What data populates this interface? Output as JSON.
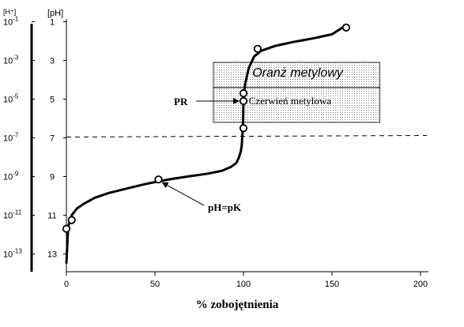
{
  "chart_data": {
    "type": "line",
    "xlabel": "% zobojętnienia",
    "x_ticks": [
      0,
      50,
      100,
      150,
      200
    ],
    "xlim": [
      0,
      200
    ],
    "ylabel_left": "[H⁺]",
    "ylabel_right": "[pH]",
    "ylim": [
      14,
      0
    ],
    "ph_ticks": [
      1,
      3,
      5,
      7,
      9,
      11,
      13
    ],
    "h_ticks": [
      {
        "base": "10",
        "exp": "-1",
        "ph": 1
      },
      {
        "base": "10",
        "exp": "-3",
        "ph": 3
      },
      {
        "base": "10",
        "exp": "-5",
        "ph": 5
      },
      {
        "base": "10",
        "exp": "-7",
        "ph": 7
      },
      {
        "base": "10",
        "exp": "-9",
        "ph": 9
      },
      {
        "base": "10",
        "exp": "-11",
        "ph": 11
      },
      {
        "base": "10",
        "exp": "-13",
        "ph": 13
      }
    ],
    "series": [
      {
        "x": [
          0,
          1,
          3,
          6,
          10,
          16,
          24,
          35,
          45,
          52,
          60,
          70,
          80,
          88,
          93,
          96,
          97.5,
          98.5,
          99,
          99.3,
          99.6,
          99.8,
          100,
          101,
          103,
          106,
          110,
          118,
          128,
          140,
          150,
          156
        ],
        "y": [
          13.5,
          11.6,
          11.0,
          10.65,
          10.4,
          10.1,
          9.85,
          9.6,
          9.38,
          9.25,
          9.12,
          8.98,
          8.85,
          8.7,
          8.5,
          8.3,
          8.0,
          7.7,
          7.4,
          7.0,
          6.6,
          6.0,
          5.0,
          4.2,
          3.4,
          2.8,
          2.5,
          2.25,
          2.05,
          1.85,
          1.65,
          1.3
        ]
      }
    ],
    "markers": [
      {
        "x": 0,
        "y": 11.7
      },
      {
        "x": 3,
        "y": 11.25
      },
      {
        "x": 52,
        "y": 9.15
      },
      {
        "x": 100,
        "y": 6.5
      },
      {
        "x": 100,
        "y": 5.1
      },
      {
        "x": 100,
        "y": 4.7
      },
      {
        "x": 108,
        "y": 2.4
      },
      {
        "x": 158,
        "y": 1.3
      }
    ],
    "neutral_line_ph": 7,
    "indicators": [
      {
        "name": "Oranż metylowy",
        "range": [
          3.1,
          4.4
        ]
      },
      {
        "name": "Czerwień metylowa",
        "range": [
          4.4,
          6.2
        ]
      }
    ],
    "annotations": {
      "pr": "PR",
      "ph_pk": "pH=pK"
    }
  }
}
